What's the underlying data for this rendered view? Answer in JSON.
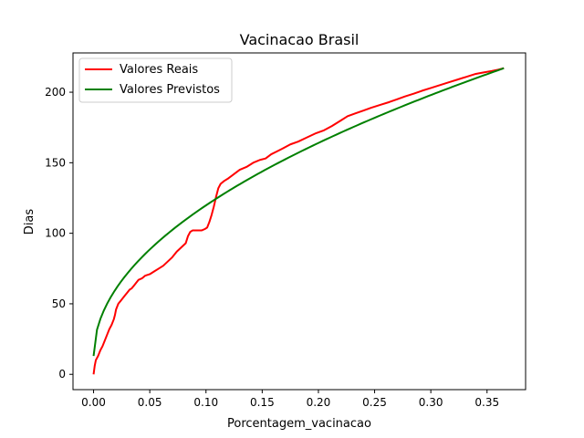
{
  "chart_data": {
    "type": "line",
    "title": "Vacinacao Brasil",
    "xlabel": "Porcentagem_vacinacao",
    "ylabel": "Dias",
    "xlim": [
      -0.0183,
      0.3843
    ],
    "ylim": [
      -10.85,
      227.85
    ],
    "x_ticks": [
      0.0,
      0.05,
      0.1,
      0.15,
      0.2,
      0.25,
      0.3,
      0.35
    ],
    "x_tick_labels": [
      "0.00",
      "0.05",
      "0.10",
      "0.15",
      "0.20",
      "0.25",
      "0.30",
      "0.35"
    ],
    "y_ticks": [
      0,
      50,
      100,
      150,
      200
    ],
    "y_tick_labels": [
      "0",
      "50",
      "100",
      "150",
      "200"
    ],
    "grid": false,
    "legend_position": "upper-left",
    "series": [
      {
        "name": "Valores Reais",
        "color": "#ff0000",
        "points": [
          [
            0.0,
            0
          ],
          [
            0.001,
            6
          ],
          [
            0.002,
            10
          ],
          [
            0.004,
            13
          ],
          [
            0.006,
            17
          ],
          [
            0.008,
            20
          ],
          [
            0.01,
            24
          ],
          [
            0.012,
            28
          ],
          [
            0.014,
            32
          ],
          [
            0.016,
            35
          ],
          [
            0.018,
            39
          ],
          [
            0.019,
            42
          ],
          [
            0.02,
            46
          ],
          [
            0.021,
            48
          ],
          [
            0.022,
            50
          ],
          [
            0.024,
            52
          ],
          [
            0.026,
            54
          ],
          [
            0.028,
            56
          ],
          [
            0.03,
            58
          ],
          [
            0.032,
            60
          ],
          [
            0.034,
            61
          ],
          [
            0.036,
            63
          ],
          [
            0.038,
            65
          ],
          [
            0.04,
            67
          ],
          [
            0.043,
            68
          ],
          [
            0.046,
            70
          ],
          [
            0.05,
            71
          ],
          [
            0.054,
            73
          ],
          [
            0.058,
            75
          ],
          [
            0.062,
            77
          ],
          [
            0.066,
            80
          ],
          [
            0.07,
            83
          ],
          [
            0.074,
            87
          ],
          [
            0.078,
            90
          ],
          [
            0.082,
            93
          ],
          [
            0.084,
            98
          ],
          [
            0.086,
            101
          ],
          [
            0.088,
            102
          ],
          [
            0.092,
            102
          ],
          [
            0.096,
            102
          ],
          [
            0.099,
            103
          ],
          [
            0.101,
            104
          ],
          [
            0.103,
            108
          ],
          [
            0.105,
            113
          ],
          [
            0.107,
            119
          ],
          [
            0.109,
            126
          ],
          [
            0.111,
            132
          ],
          [
            0.113,
            135
          ],
          [
            0.116,
            137
          ],
          [
            0.12,
            139
          ],
          [
            0.125,
            142
          ],
          [
            0.13,
            145
          ],
          [
            0.136,
            147
          ],
          [
            0.142,
            150
          ],
          [
            0.148,
            152
          ],
          [
            0.153,
            153
          ],
          [
            0.158,
            156
          ],
          [
            0.163,
            158
          ],
          [
            0.168,
            160
          ],
          [
            0.175,
            163
          ],
          [
            0.182,
            165
          ],
          [
            0.19,
            168
          ],
          [
            0.198,
            171
          ],
          [
            0.205,
            173
          ],
          [
            0.212,
            176
          ],
          [
            0.22,
            180
          ],
          [
            0.226,
            183
          ],
          [
            0.233,
            185
          ],
          [
            0.24,
            187
          ],
          [
            0.247,
            189
          ],
          [
            0.255,
            191
          ],
          [
            0.263,
            193
          ],
          [
            0.27,
            195
          ],
          [
            0.277,
            197
          ],
          [
            0.285,
            199
          ],
          [
            0.292,
            201
          ],
          [
            0.3,
            203
          ],
          [
            0.308,
            205
          ],
          [
            0.316,
            207
          ],
          [
            0.324,
            209
          ],
          [
            0.332,
            211
          ],
          [
            0.34,
            213
          ],
          [
            0.347,
            214
          ],
          [
            0.354,
            215
          ],
          [
            0.36,
            216
          ],
          [
            0.365,
            217
          ]
        ]
      },
      {
        "name": "Valores Previstos",
        "color": "#008000",
        "fit": {
          "form": "a + b*sqrt(x)",
          "a": 13,
          "b": 337.7,
          "x_range": [
            0.0,
            0.365
          ]
        }
      }
    ]
  }
}
